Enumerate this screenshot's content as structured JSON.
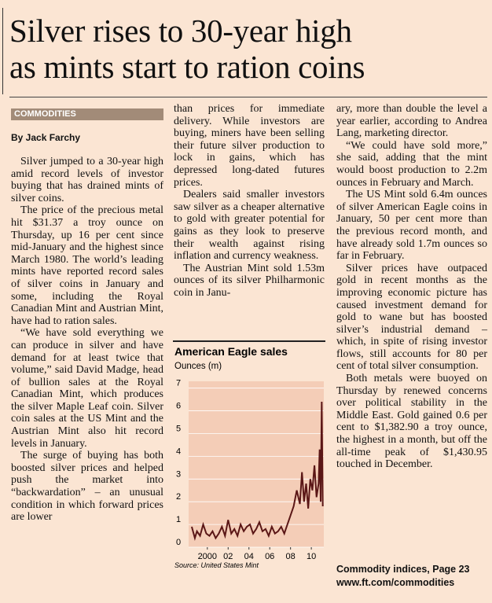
{
  "headline": [
    "Silver rises to 30-year high",
    "as mints start to ration coins"
  ],
  "section": "COMMODITIES",
  "byline": "By Jack Farchy",
  "columns": [
    [
      "Silver jumped to a 30-year high amid record levels of investor buying that has drained mints of silver coins.",
      "The price of the precious metal hit $31.37 a troy ounce on Thursday, up 16 per cent since mid-January and the highest since March 1980. The world’s leading mints have reported record sales of silver coins in January and some, including the Royal Canadian Mint and Austrian Mint, have had to ration sales.",
      "“We have sold everything we can produce in silver and have demand for at least twice that volume,” said David Madge, head of bullion sales at the Royal Canadian Mint, which produces the silver Maple Leaf coin. Silver coin sales at the US Mint and the Austrian Mint also hit record levels in January.",
      "The surge of buying has both boosted silver prices and helped push the market into “backwardation” – an unusual condition in which forward prices are lower"
    ],
    [
      "than prices for immediate delivery. While investors are buying, miners have been selling their future silver production to lock in gains, which has depressed long-dated futures prices.",
      "Dealers said smaller investors saw silver as a cheaper alternative to gold with greater potential for gains as they look to preserve their wealth against rising inflation and currency weakness.",
      "The Austrian Mint sold 1.53m ounces of its silver Philharmonic coin in Janu-"
    ],
    [
      "ary, more than double the level a year earlier, according to Andrea Lang, marketing director.",
      "“We could have sold more,” she said, adding that the mint would boost production to 2.2m ounces in February and March.",
      "The US Mint sold 6.4m ounces of silver American Eagle coins in January, 50 per cent more than the previous record month, and have already sold 1.7m ounces so far in February.",
      "Silver prices have outpaced gold in recent months as the improving economic picture has caused investment demand for gold to wane but has boosted silver’s industrial demand – which, in spite of rising investor flows, still accounts for 80 per cent of total silver consumption.",
      "Both metals were buoyed on Thursday by renewed concerns over political stability in the Middle East. Gold gained 0.6 per cent to $1,382.90 a troy ounce, the highest in a month, but off the all-time peak of $1,430.95 touched in December."
    ]
  ],
  "footer": [
    "Commodity indices, Page 23",
    "www.ft.com/commodities"
  ],
  "chart": {
    "type": "line",
    "title": "American Eagle sales",
    "y_label": "Ounces (m)",
    "source": "Source: United States Mint",
    "color": "#5a1616",
    "x": [
      1998.5,
      1998.8,
      1999.0,
      1999.3,
      1999.6,
      1999.9,
      2000.2,
      2000.5,
      2000.8,
      2001.1,
      2001.4,
      2001.7,
      2002.0,
      2002.3,
      2002.6,
      2002.9,
      2003.2,
      2003.5,
      2003.8,
      2004.1,
      2004.4,
      2004.7,
      2005.0,
      2005.3,
      2005.6,
      2005.9,
      2006.2,
      2006.5,
      2006.8,
      2007.1,
      2007.4,
      2007.7,
      2008.0,
      2008.3,
      2008.6,
      2008.9,
      2009.1,
      2009.3,
      2009.5,
      2009.7,
      2009.9,
      2010.1,
      2010.3,
      2010.5,
      2010.7,
      2010.8,
      2010.9,
      2011.0,
      2011.1
    ],
    "values": [
      0.9,
      0.4,
      0.7,
      0.5,
      1.0,
      0.6,
      0.5,
      0.7,
      0.4,
      0.6,
      0.9,
      0.5,
      1.2,
      0.6,
      0.8,
      0.5,
      1.0,
      0.7,
      0.9,
      1.0,
      0.6,
      0.8,
      1.1,
      0.7,
      0.8,
      0.5,
      0.9,
      0.6,
      0.7,
      0.9,
      0.6,
      1.0,
      1.4,
      1.8,
      2.5,
      1.9,
      3.3,
      2.0,
      2.8,
      1.7,
      3.0,
      2.5,
      3.6,
      2.2,
      2.8,
      4.3,
      2.0,
      6.4,
      1.8
    ],
    "xlim": [
      1998.2,
      2011.2
    ],
    "ylim": [
      0,
      7.3
    ],
    "yticks": [
      0,
      1,
      2,
      3,
      4,
      5,
      6,
      7
    ],
    "xticks": [
      {
        "value": 2000,
        "label": "2000"
      },
      {
        "value": 2002,
        "label": "02"
      },
      {
        "value": 2004,
        "label": "04"
      },
      {
        "value": 2006,
        "label": "06"
      },
      {
        "value": 2008,
        "label": "08"
      },
      {
        "value": 2010,
        "label": "10"
      }
    ]
  }
}
